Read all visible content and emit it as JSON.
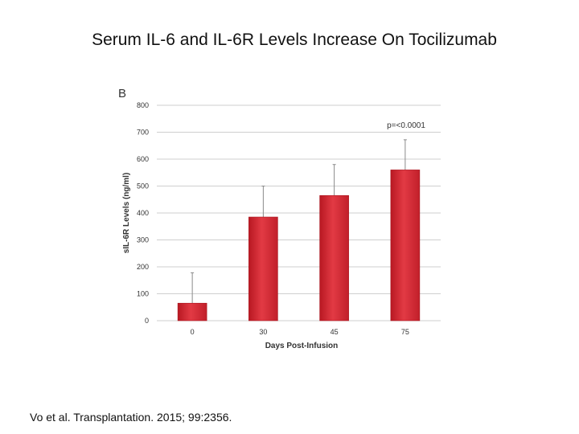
{
  "slide": {
    "title": "Serum IL-6 and IL-6R Levels Increase On Tocilizumab"
  },
  "citation": {
    "authors": "Vo et al.",
    "source": "Transplantation. 2015; 99:2356."
  },
  "chart_data": {
    "type": "bar",
    "panel_label": "B",
    "categories": [
      "0",
      "30",
      "45",
      "75"
    ],
    "values": [
      65,
      385,
      465,
      560
    ],
    "error_upper": [
      178,
      500,
      580,
      672
    ],
    "xlabel": "Days  Post-Infusion",
    "ylabel": "sIL-6R Levels (ng/ml)",
    "ylim": [
      0,
      800
    ],
    "yticks": [
      0,
      100,
      200,
      300,
      400,
      500,
      600,
      700,
      800
    ],
    "annotation": "p=<0.0001",
    "grid": true,
    "bar_color": "#d42a35"
  }
}
